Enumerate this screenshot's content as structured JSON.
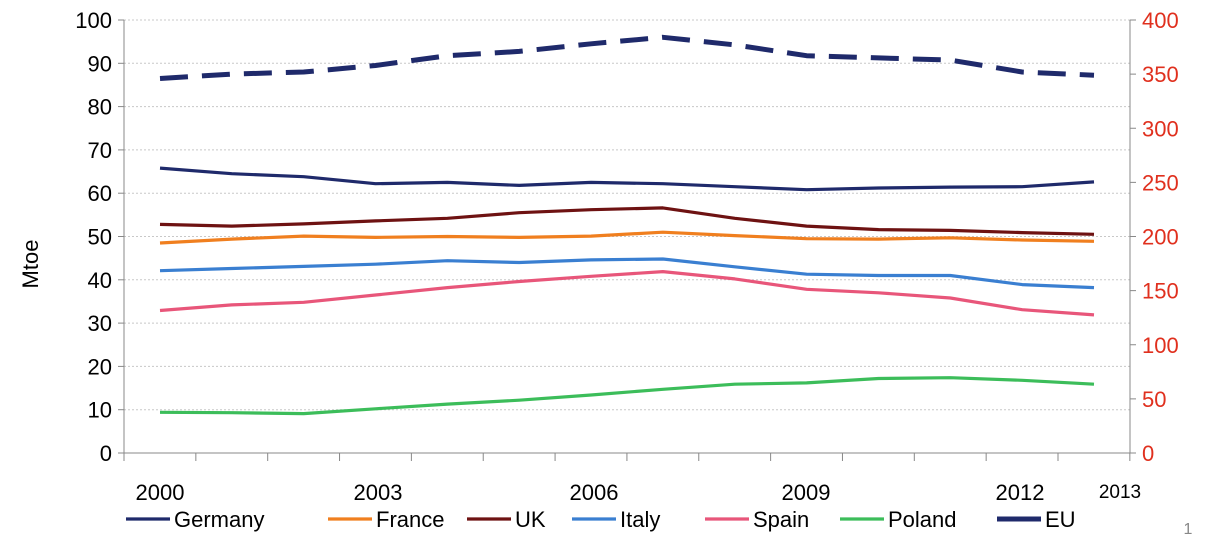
{
  "chart_data": {
    "type": "line",
    "title": "",
    "ylabel": "Mtoe",
    "ylim": [
      0,
      100
    ],
    "y2lim": [
      0,
      400
    ],
    "yticks": [
      "0",
      "10",
      "20",
      "30",
      "40",
      "50",
      "60",
      "70",
      "80",
      "90",
      "100"
    ],
    "y2ticks": [
      "0",
      "50",
      "100",
      "150",
      "200",
      "250",
      "300",
      "350",
      "400"
    ],
    "x": [
      2000,
      2001,
      2002,
      2003,
      2004,
      2005,
      2006,
      2007,
      2008,
      2009,
      2010,
      2011,
      2012,
      2013
    ],
    "xticklabels": [
      "2000",
      "2003",
      "2006",
      "2009",
      "2012",
      "2013"
    ],
    "grid": true,
    "legend_position": "bottom",
    "series": [
      {
        "name": "Germany",
        "color": "#1f2a6b",
        "axis": "left",
        "style": "solid",
        "values": [
          65.8,
          64.5,
          63.8,
          62.2,
          62.5,
          61.8,
          62.5,
          62.2,
          61.5,
          60.8,
          61.2,
          61.4,
          61.5,
          62.6
        ]
      },
      {
        "name": "France",
        "color": "#f07f1f",
        "axis": "left",
        "style": "solid",
        "values": [
          48.5,
          49.4,
          50.1,
          49.8,
          50.0,
          49.8,
          50.1,
          51.0,
          50.2,
          49.5,
          49.4,
          49.7,
          49.2,
          48.9
        ]
      },
      {
        "name": "UK",
        "color": "#6e1212",
        "axis": "left",
        "style": "solid",
        "values": [
          52.8,
          52.4,
          52.9,
          53.6,
          54.2,
          55.5,
          56.2,
          56.6,
          54.2,
          52.4,
          51.6,
          51.4,
          50.9,
          50.5
        ]
      },
      {
        "name": "Italy",
        "color": "#3a7fd1",
        "axis": "left",
        "style": "solid",
        "values": [
          42.1,
          42.6,
          43.1,
          43.6,
          44.4,
          44.0,
          44.6,
          44.8,
          43.0,
          41.3,
          41.0,
          41.0,
          38.9,
          38.2
        ]
      },
      {
        "name": "Spain",
        "color": "#e8567a",
        "axis": "left",
        "style": "solid",
        "values": [
          32.9,
          34.2,
          34.8,
          36.5,
          38.2,
          39.6,
          40.8,
          41.9,
          40.2,
          37.8,
          37.0,
          35.8,
          33.1,
          31.9
        ]
      },
      {
        "name": "Poland",
        "color": "#3cbd5a",
        "axis": "left",
        "style": "solid",
        "values": [
          9.4,
          9.3,
          9.1,
          10.2,
          11.3,
          12.2,
          13.4,
          14.7,
          15.9,
          16.2,
          17.2,
          17.4,
          16.8,
          15.9
        ]
      },
      {
        "name": "EU",
        "color": "#1f2a6b",
        "axis": "right",
        "style": "dashed",
        "values": [
          346,
          350,
          352,
          358,
          367,
          371,
          378,
          384,
          377,
          367,
          365,
          363,
          352,
          349
        ]
      }
    ]
  },
  "page_number": "1"
}
